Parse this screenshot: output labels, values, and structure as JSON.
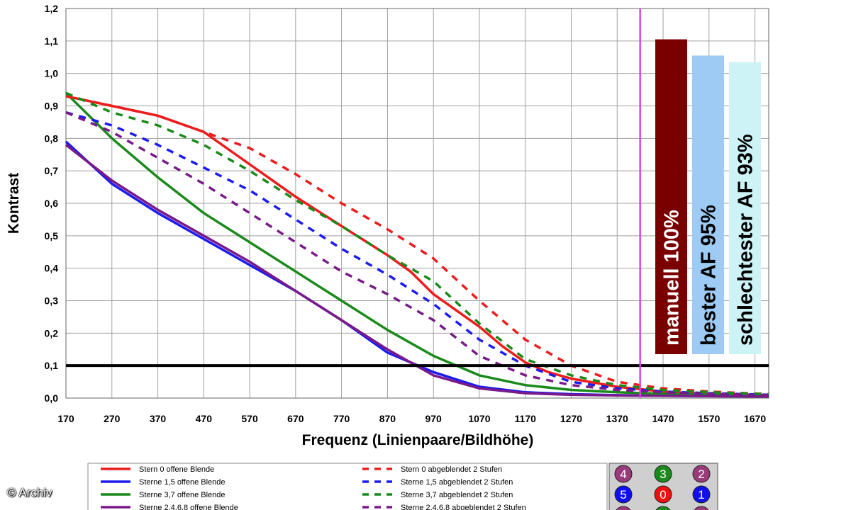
{
  "chart_data": {
    "type": "line",
    "title": "",
    "xlabel": "Frequenz (Linienpaare/Bildhöhe)",
    "ylabel": "Kontrast",
    "xlim": [
      170,
      1700
    ],
    "ylim": [
      0,
      1.2
    ],
    "xticks": [
      "170",
      "270",
      "370",
      "470",
      "570",
      "670",
      "770",
      "870",
      "970",
      "1070",
      "1170",
      "1270",
      "1370",
      "1470",
      "1570",
      "1670"
    ],
    "yticks": [
      "0,0",
      "0,1",
      "0,2",
      "0,3",
      "0,4",
      "0,5",
      "0,6",
      "0,7",
      "0,8",
      "0,9",
      "1,0",
      "1,1",
      "1,2"
    ],
    "grid": true,
    "threshold": {
      "y": 0.1,
      "color": "#000000"
    },
    "vertical_marker": {
      "x": 1420,
      "color": "#e040e0"
    },
    "series": [
      {
        "name": "Stern 0 offene Blende",
        "color": "#ee1c1c",
        "style": "solid",
        "x": [
          170,
          270,
          370,
          470,
          570,
          670,
          770,
          870,
          920,
          970,
          1070,
          1120,
          1170,
          1220,
          1270,
          1370,
          1470,
          1570,
          1700
        ],
        "y": [
          0.93,
          0.9,
          0.87,
          0.82,
          0.72,
          0.62,
          0.53,
          0.44,
          0.39,
          0.32,
          0.22,
          0.16,
          0.11,
          0.08,
          0.06,
          0.035,
          0.02,
          0.012,
          0.007
        ]
      },
      {
        "name": "Sterne 1,5 offene Blende",
        "color": "#1c1cee",
        "style": "solid",
        "x": [
          170,
          270,
          370,
          470,
          570,
          670,
          770,
          870,
          970,
          1070,
          1170,
          1270,
          1370,
          1470,
          1570,
          1700
        ],
        "y": [
          0.79,
          0.66,
          0.57,
          0.49,
          0.41,
          0.33,
          0.24,
          0.14,
          0.08,
          0.035,
          0.018,
          0.012,
          0.009,
          0.007,
          0.006,
          0.005
        ]
      },
      {
        "name": "Sterne 3,7 offene Blende",
        "color": "#1a8a1a",
        "style": "solid",
        "x": [
          170,
          270,
          370,
          470,
          570,
          670,
          770,
          870,
          970,
          1070,
          1170,
          1270,
          1370,
          1470,
          1570,
          1700
        ],
        "y": [
          0.94,
          0.8,
          0.68,
          0.57,
          0.48,
          0.39,
          0.3,
          0.21,
          0.13,
          0.07,
          0.04,
          0.025,
          0.018,
          0.013,
          0.01,
          0.008
        ]
      },
      {
        "name": "Sterne 2,4,6,8 offene Blende",
        "color": "#7a1a8a",
        "style": "solid",
        "x": [
          170,
          270,
          370,
          470,
          570,
          670,
          770,
          870,
          970,
          1070,
          1170,
          1270,
          1370,
          1470,
          1570,
          1700
        ],
        "y": [
          0.78,
          0.67,
          0.58,
          0.5,
          0.42,
          0.33,
          0.24,
          0.15,
          0.07,
          0.03,
          0.015,
          0.01,
          0.008,
          0.007,
          0.006,
          0.005
        ]
      },
      {
        "name": "Stern 0 abgeblendet 2 Stufen",
        "color": "#ee1c1c",
        "style": "dashed",
        "x": [
          170,
          270,
          370,
          470,
          570,
          670,
          770,
          870,
          970,
          1070,
          1170,
          1270,
          1370,
          1470,
          1570,
          1700
        ],
        "y": [
          0.93,
          0.9,
          0.87,
          0.82,
          0.77,
          0.69,
          0.6,
          0.52,
          0.43,
          0.3,
          0.18,
          0.1,
          0.05,
          0.03,
          0.02,
          0.012
        ]
      },
      {
        "name": "Sterne 1,5 abgeblendet 2 Stufen",
        "color": "#1c1cee",
        "style": "dashed",
        "x": [
          170,
          270,
          370,
          470,
          570,
          670,
          770,
          870,
          970,
          1070,
          1170,
          1270,
          1370,
          1470,
          1570,
          1700
        ],
        "y": [
          0.88,
          0.84,
          0.78,
          0.71,
          0.64,
          0.55,
          0.46,
          0.38,
          0.29,
          0.18,
          0.1,
          0.05,
          0.03,
          0.02,
          0.015,
          0.01
        ]
      },
      {
        "name": "Sterne 3,7 abgeblendet 2 Stufen",
        "color": "#1a8a1a",
        "style": "dashed",
        "x": [
          170,
          270,
          370,
          470,
          570,
          670,
          770,
          870,
          970,
          1070,
          1170,
          1270,
          1370,
          1470,
          1570,
          1700
        ],
        "y": [
          0.94,
          0.88,
          0.84,
          0.78,
          0.7,
          0.61,
          0.53,
          0.44,
          0.36,
          0.23,
          0.12,
          0.07,
          0.04,
          0.025,
          0.018,
          0.012
        ]
      },
      {
        "name": "Sterne 2,4,6,8 abgeblendet 2 Stufen",
        "color": "#7a1a8a",
        "style": "dashed",
        "x": [
          170,
          270,
          370,
          470,
          570,
          670,
          770,
          870,
          970,
          1070,
          1170,
          1270,
          1370,
          1470,
          1570,
          1700
        ],
        "y": [
          0.88,
          0.82,
          0.74,
          0.66,
          0.57,
          0.48,
          0.39,
          0.32,
          0.24,
          0.13,
          0.07,
          0.04,
          0.025,
          0.018,
          0.013,
          0.009
        ]
      }
    ],
    "bars": [
      {
        "label": "manuell 100%",
        "value": 1.105,
        "color": "#7a0000",
        "text_color": "#ffffff"
      },
      {
        "label": "bester AF 95%",
        "value": 1.055,
        "color": "#9dcbf4",
        "text_color": "#000000"
      },
      {
        "label": "schlechtester AF 93%",
        "value": 1.035,
        "color": "#cdf3f7",
        "text_color": "#000000"
      }
    ],
    "legend_position": "bottom",
    "star_key": {
      "labels": [
        "4",
        "3",
        "2",
        "5",
        "0",
        "1"
      ],
      "colors": [
        "#9a3a7a",
        "#1a8a1a",
        "#9a3a7a",
        "#1010ee",
        "#ee1010",
        "#1010ee"
      ]
    }
  },
  "watermark": "© Archiv"
}
